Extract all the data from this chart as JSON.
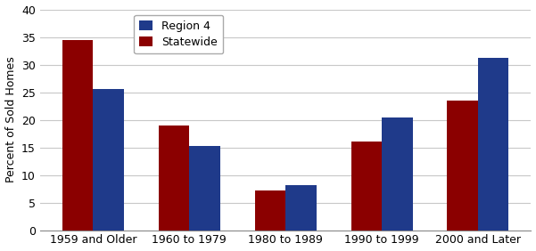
{
  "categories": [
    "1959 and Older",
    "1960 to 1979",
    "1980 to 1989",
    "1990 to 1999",
    "2000 and Later"
  ],
  "statewide": [
    34.5,
    19.0,
    7.2,
    16.1,
    23.5
  ],
  "region4": [
    25.5,
    15.2,
    8.2,
    20.4,
    31.2
  ],
  "statewide_color": "#8B0000",
  "region4_color": "#1F3A8A",
  "ylabel": "Percent of Sold Homes",
  "ylim": [
    0,
    40
  ],
  "yticks": [
    0,
    5,
    10,
    15,
    20,
    25,
    30,
    35,
    40
  ],
  "bar_width": 0.32,
  "background_color": "#ffffff",
  "grid_color": "#c8c8c8"
}
